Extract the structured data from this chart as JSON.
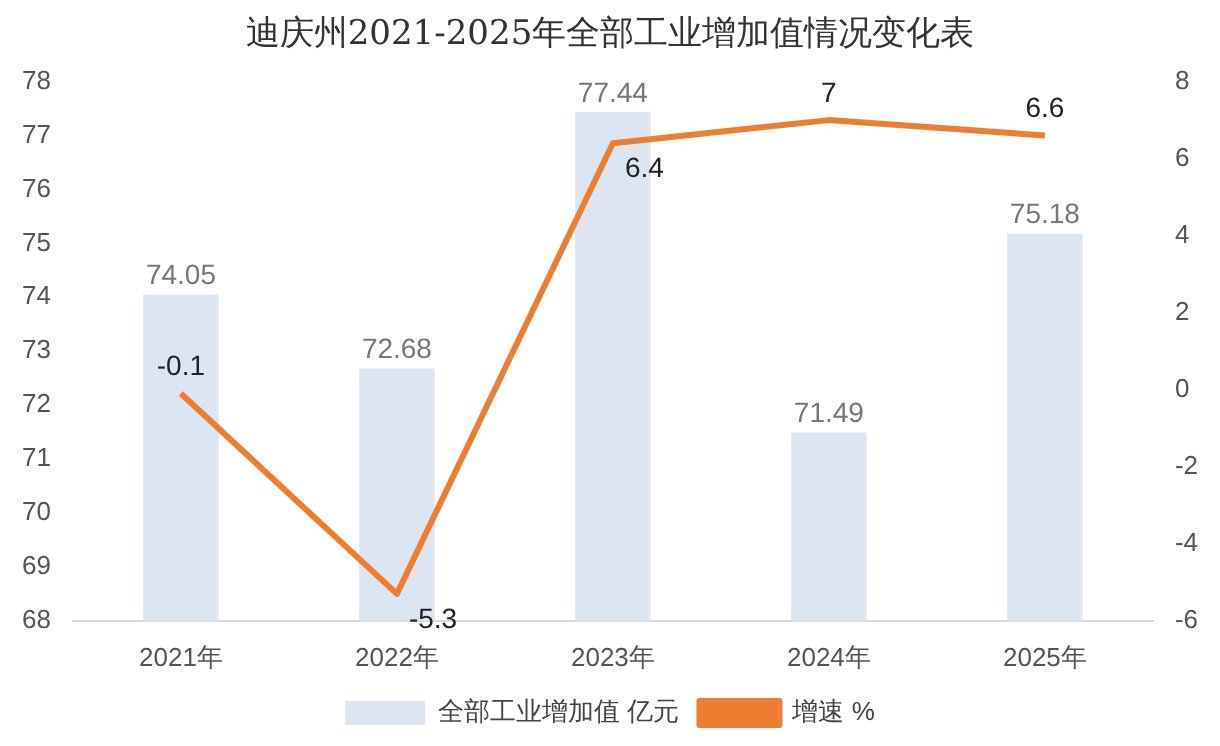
{
  "chart_data": {
    "type": "bar",
    "title": "迪庆州2021-2025年全部工业增加值情况变化表",
    "categories": [
      "2021年",
      "2022年",
      "2023年",
      "2024年",
      "2025年"
    ],
    "series": [
      {
        "name": "全部工业增加值 亿元",
        "color": "#dce6f2",
        "values": [
          74.05,
          72.68,
          77.44,
          71.49,
          75.18
        ]
      },
      {
        "name": "增速 %",
        "type": "line",
        "axis": "y2",
        "color": "#ed7d31",
        "values": [
          -0.1,
          -5.3,
          6.4,
          7,
          6.6
        ]
      }
    ],
    "ylim": [
      68,
      78
    ],
    "yticks": [
      68,
      69,
      70,
      71,
      72,
      73,
      74,
      75,
      76,
      77,
      78
    ],
    "y2lim": [
      -6,
      8
    ],
    "y2ticks": [
      -6,
      -4,
      -2,
      0,
      2,
      4,
      6,
      8
    ],
    "data_labels": true,
    "legend": "bottom",
    "grid": false,
    "marker": "none",
    "line_style": "solid"
  }
}
